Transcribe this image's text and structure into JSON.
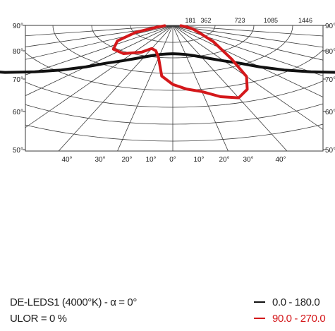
{
  "chart_data": {
    "type": "polar-luminous-intensity",
    "title": "",
    "radial_scale_labels": [
      "181",
      "362",
      "723",
      "1085",
      "1446"
    ],
    "angle_labels_left": [
      "90°",
      "80°",
      "70°",
      "60°",
      "50°"
    ],
    "angle_labels_right": [
      "90°",
      "80°",
      "70°",
      "60°",
      "50°"
    ],
    "angle_labels_bottom": [
      "40°",
      "30°",
      "20°",
      "10°",
      "0°",
      "10°",
      "20°",
      "30°",
      "40°"
    ],
    "series": [
      {
        "name": "0.0 - 180.0",
        "color": "#111111",
        "angles_deg": [
          -85,
          -80,
          -75,
          -70,
          -65,
          -60,
          -55,
          -50,
          -45,
          -40,
          -35,
          -30,
          -25,
          -20,
          -15,
          -10,
          -5,
          0,
          5,
          10,
          15,
          20,
          25,
          30,
          35,
          40,
          45,
          50,
          55,
          60,
          65,
          70,
          75,
          80,
          85
        ],
        "values": [
          1000,
          1200,
          1350,
          1300,
          1200,
          1100,
          1000,
          880,
          770,
          660,
          560,
          500,
          450,
          410,
          380,
          360,
          350,
          345,
          350,
          360,
          380,
          410,
          450,
          500,
          560,
          660,
          770,
          880,
          1000,
          1100,
          1200,
          1300,
          1350,
          1200,
          1000
        ]
      },
      {
        "name": "90.0 - 270.0",
        "color": "#d4181b",
        "angles_deg": [
          -85,
          -75,
          -65,
          -55,
          -45,
          -35,
          -25,
          -20,
          -15,
          -10,
          -5,
          0,
          5,
          10,
          15,
          20,
          25,
          30,
          35,
          45,
          55,
          65,
          75,
          85
        ],
        "values": [
          40,
          80,
          200,
          330,
          410,
          420,
          360,
          300,
          320,
          400,
          620,
          720,
          780,
          820,
          900,
          940,
          860,
          720,
          500,
          280,
          160,
          110,
          70,
          40
        ]
      }
    ],
    "annotation": "DE-LEDS1 (4000°K) - α = 0°",
    "ulor": "ULOR = 0 %"
  }
}
